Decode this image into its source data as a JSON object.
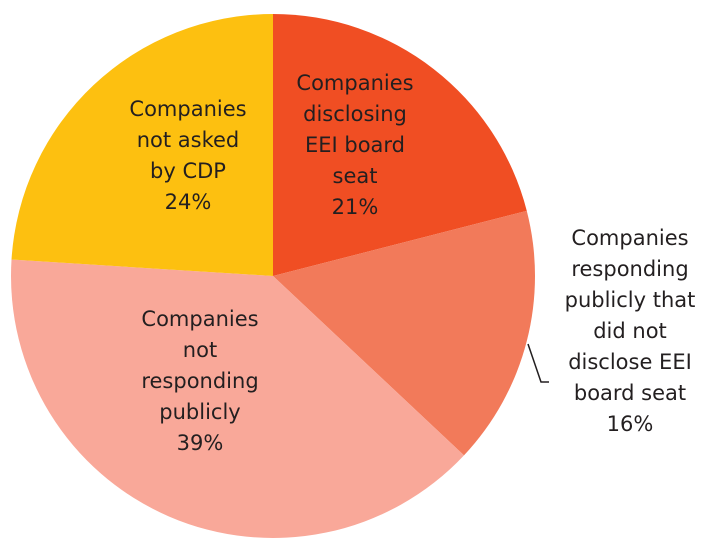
{
  "chart_data": {
    "type": "pie",
    "categories": [
      "Companies\ndisclosing\nEEI board\nseat",
      "Companies\nresponding\npublicly that\ndid not\ndisclose EEI\nboard seat",
      "Companies\nnot\nresponding\npublicly",
      "Companies\nnot asked\nby CDP"
    ],
    "values": [
      21,
      16,
      39,
      24
    ],
    "value_labels": [
      "21%",
      "16%",
      "39%",
      "24%"
    ],
    "colors": [
      "#f04e23",
      "#f27a5a",
      "#f9a899",
      "#fdc010"
    ]
  }
}
